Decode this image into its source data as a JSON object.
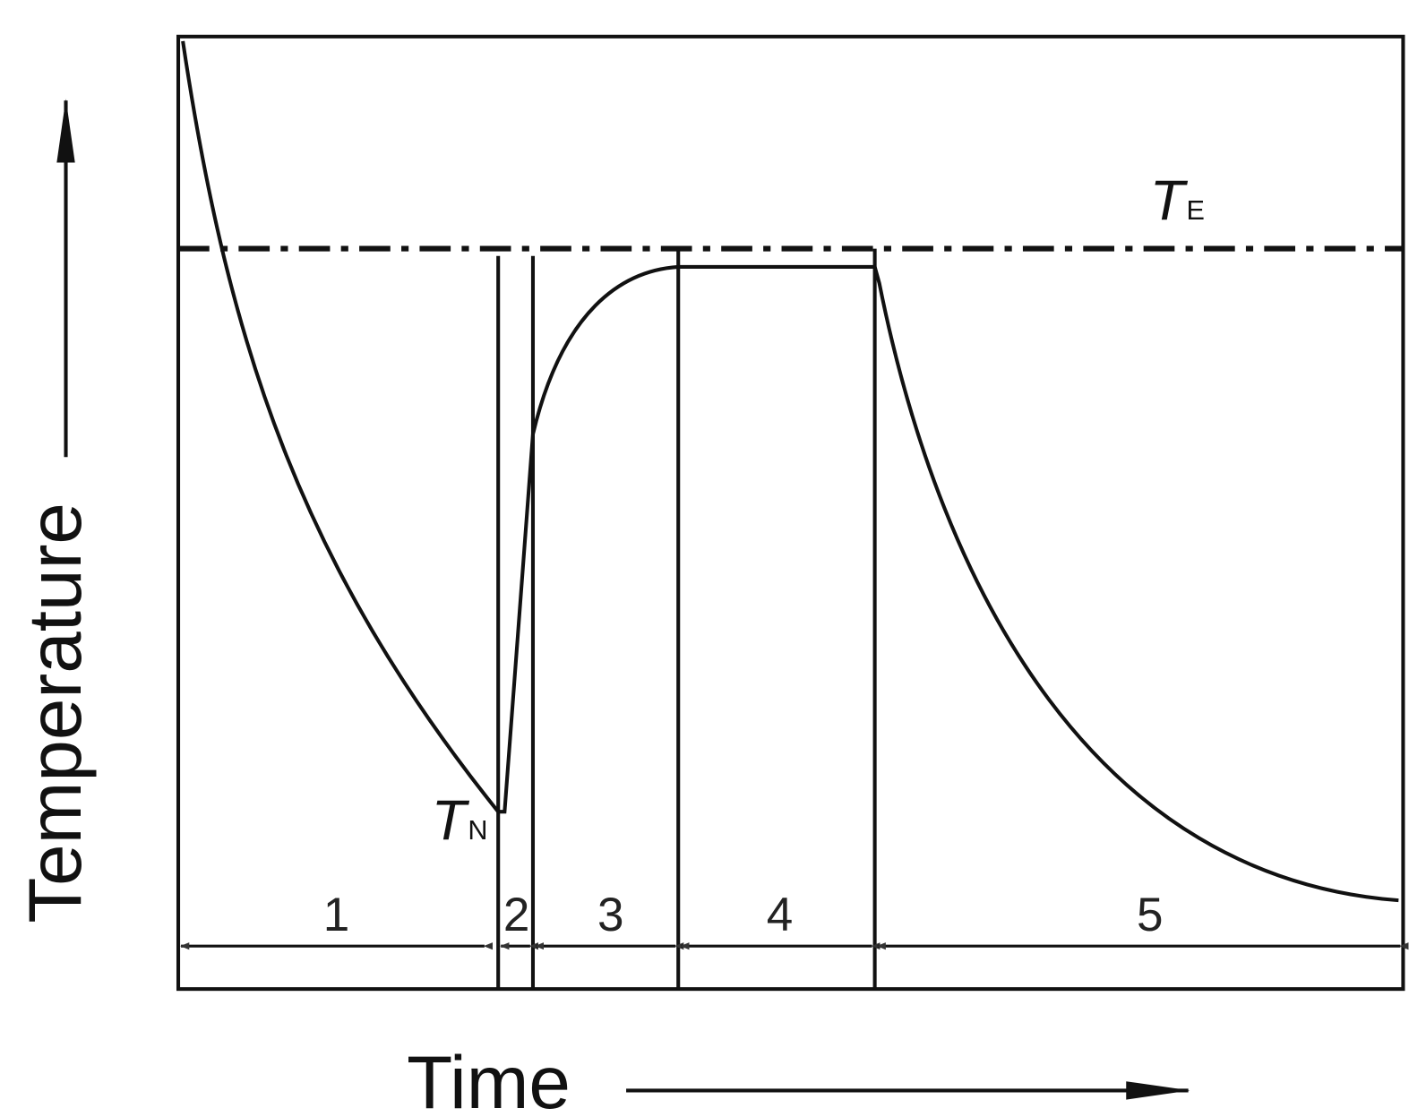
{
  "axes": {
    "y_label": "Temperature",
    "x_label": "Time"
  },
  "levels": [
    {
      "symbol": "T",
      "subscript": "E"
    },
    {
      "symbol": "T",
      "subscript": "N"
    }
  ],
  "stages": [
    "1",
    "2",
    "3",
    "4",
    "5"
  ]
}
